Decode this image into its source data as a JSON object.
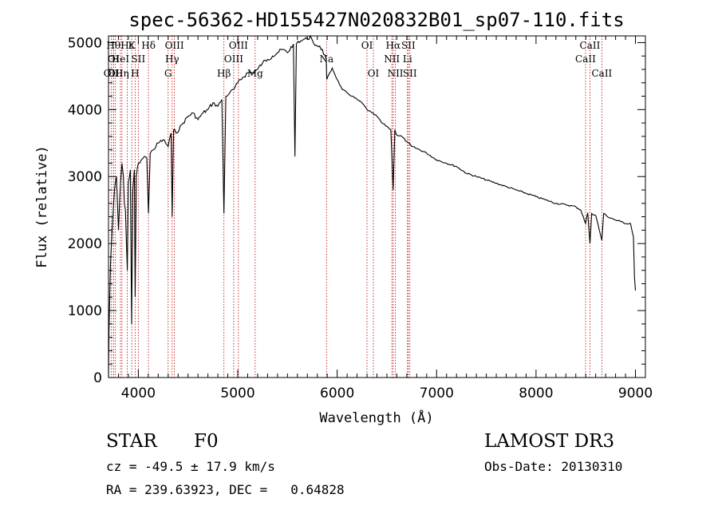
{
  "chart_data": {
    "type": "line",
    "title": "spec-56362-HD155427N020832B01_sp07-110.fits",
    "xlabel": "Wavelength (Å)",
    "ylabel": "Flux (relative)",
    "xlim": [
      3700,
      9100
    ],
    "ylim": [
      0,
      5100
    ],
    "xticks": [
      4000,
      5000,
      6000,
      7000,
      8000,
      9000
    ],
    "yticks": [
      0,
      1000,
      2000,
      3000,
      4000,
      5000
    ],
    "x_tick_labels": [
      "4000",
      "5000",
      "6000",
      "7000",
      "8000",
      "9000"
    ],
    "y_tick_labels": [
      "0",
      "1000",
      "2000",
      "3000",
      "4000",
      "5000"
    ],
    "series": [
      {
        "name": "spectrum",
        "x": [
          3700,
          3705,
          3720,
          3740,
          3760,
          3780,
          3800,
          3820,
          3835,
          3850,
          3860,
          3870,
          3889,
          3900,
          3920,
          3933,
          3945,
          3960,
          3968,
          3980,
          4000,
          4030,
          4060,
          4085,
          4102,
          4120,
          4150,
          4200,
          4250,
          4300,
          4330,
          4340,
          4355,
          4380,
          4450,
          4500,
          4550,
          4600,
          4650,
          4700,
          4750,
          4800,
          4840,
          4861,
          4880,
          4920,
          4960,
          5000,
          5050,
          5100,
          5150,
          5200,
          5250,
          5300,
          5350,
          5400,
          5450,
          5500,
          5560,
          5575,
          5590,
          5620,
          5660,
          5700,
          5730,
          5760,
          5800,
          5850,
          5890,
          5895,
          5950,
          6000,
          6050,
          6100,
          6150,
          6200,
          6250,
          6300,
          6350,
          6400,
          6450,
          6500,
          6540,
          6563,
          6580,
          6600,
          6650,
          6700,
          6750,
          6800,
          6900,
          7000,
          7100,
          7200,
          7300,
          7400,
          7500,
          7600,
          7700,
          7800,
          7900,
          8000,
          8100,
          8200,
          8300,
          8400,
          8450,
          8498,
          8520,
          8542,
          8560,
          8600,
          8662,
          8680,
          8720,
          8760,
          8800,
          8850,
          8900,
          8950,
          8980,
          8990,
          9000
        ],
        "y": [
          0,
          700,
          1700,
          2300,
          2800,
          3000,
          2200,
          2900,
          3200,
          3000,
          2600,
          2500,
          1600,
          2900,
          3100,
          800,
          2800,
          3100,
          1200,
          3000,
          3200,
          3250,
          3300,
          3280,
          2450,
          3350,
          3400,
          3500,
          3550,
          3450,
          3650,
          2400,
          3700,
          3650,
          3800,
          3900,
          3950,
          3850,
          3950,
          4000,
          4100,
          4050,
          4150,
          2450,
          4200,
          4250,
          4300,
          4400,
          4480,
          4550,
          4550,
          4600,
          4700,
          4750,
          4800,
          4850,
          4900,
          4850,
          4980,
          3300,
          4980,
          5000,
          5050,
          5050,
          5100,
          5000,
          4950,
          4900,
          4750,
          4450,
          4620,
          4450,
          4300,
          4250,
          4200,
          4150,
          4100,
          4000,
          3950,
          3900,
          3800,
          3750,
          3700,
          2800,
          3700,
          3620,
          3600,
          3520,
          3450,
          3420,
          3350,
          3250,
          3200,
          3150,
          3050,
          3000,
          2950,
          2900,
          2850,
          2800,
          2750,
          2700,
          2650,
          2600,
          2580,
          2550,
          2500,
          2300,
          2460,
          2000,
          2450,
          2420,
          2050,
          2450,
          2400,
          2380,
          2350,
          2330,
          2300,
          2300,
          2100,
          1500,
          1300
        ]
      }
    ],
    "line_labels": [
      {
        "wavelength": 3727,
        "label": "OII",
        "row": 2
      },
      {
        "wavelength": 3750,
        "label": "Hθ",
        "row": 0
      },
      {
        "wavelength": 3750,
        "label": "OI",
        "row": 1
      },
      {
        "wavelength": 3770,
        "label": "OII",
        "row": 2
      },
      {
        "wavelength": 3835,
        "label": "Hη",
        "row": 2
      },
      {
        "wavelength": 3820,
        "label": "HeI",
        "row": 1
      },
      {
        "wavelength": 3889,
        "label": "Hε",
        "row": 0
      },
      {
        "wavelength": 3934,
        "label": "K",
        "row": 0
      },
      {
        "wavelength": 3968,
        "label": "H",
        "row": 2
      },
      {
        "wavelength": 4000,
        "label": "SII",
        "row": 1
      },
      {
        "wavelength": 4102,
        "label": "Hδ",
        "row": 0
      },
      {
        "wavelength": 4300,
        "label": "G",
        "row": 2
      },
      {
        "wavelength": 4340,
        "label": "Hγ",
        "row": 1
      },
      {
        "wavelength": 4363,
        "label": "OIII",
        "row": 0
      },
      {
        "wavelength": 4861,
        "label": "Hβ",
        "row": 2
      },
      {
        "wavelength": 4959,
        "label": "OIII",
        "row": 1
      },
      {
        "wavelength": 5007,
        "label": "OIII",
        "row": 0
      },
      {
        "wavelength": 5175,
        "label": "Mg",
        "row": 2
      },
      {
        "wavelength": 5893,
        "label": "Na",
        "row": 1
      },
      {
        "wavelength": 6300,
        "label": "OI",
        "row": 0
      },
      {
        "wavelength": 6364,
        "label": "OI",
        "row": 2
      },
      {
        "wavelength": 6563,
        "label": "Hα",
        "row": 0
      },
      {
        "wavelength": 6550,
        "label": "NII",
        "row": 1
      },
      {
        "wavelength": 6585,
        "label": "NII",
        "row": 2
      },
      {
        "wavelength": 6707,
        "label": "Li",
        "row": 1
      },
      {
        "wavelength": 6716,
        "label": "SII",
        "row": 0
      },
      {
        "wavelength": 6731,
        "label": "SII",
        "row": 2
      },
      {
        "wavelength": 8498,
        "label": "CaII",
        "row": 1
      },
      {
        "wavelength": 8542,
        "label": "CaII",
        "row": 0
      },
      {
        "wavelength": 8662,
        "label": "CaII",
        "row": 2
      }
    ]
  },
  "info": {
    "class": "STAR",
    "subclass": "F0",
    "survey": "LAMOST DR3",
    "cz": "cz = -49.5 ± 17.9 km/s",
    "obs_date": "Obs-Date: 20130310",
    "coords": "RA = 239.63923, DEC =   0.64828"
  },
  "colors": {
    "line": "#000000",
    "marker": "#c00000",
    "background": "#ffffff"
  }
}
